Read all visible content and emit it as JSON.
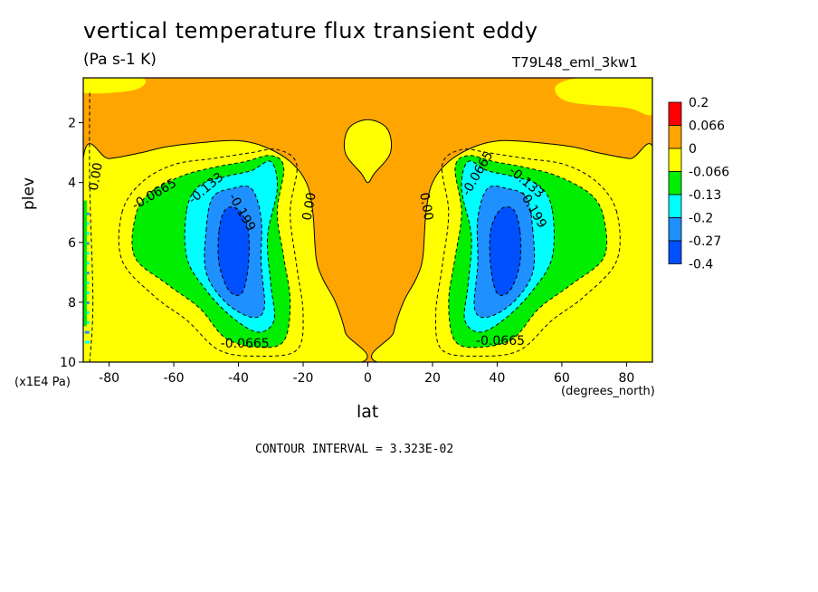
{
  "figure": {
    "title": "vertical temperature flux transient eddy",
    "units": "(Pa s-1 K)",
    "run_id": "T79L48_eml_3kw1",
    "contour_interval": "CONTOUR INTERVAL = 3.323E-02"
  },
  "chart_data": {
    "type": "heatmap",
    "title": "vertical temperature flux transient eddy",
    "xlabel": "lat",
    "xunit": "(degrees_north)",
    "ylabel": "plev",
    "yunit": "(x1E4 Pa)",
    "xlim": [
      -88,
      88
    ],
    "ylim": [
      0.5,
      10
    ],
    "y_inverted": true,
    "xticks": [
      -80,
      -60,
      -40,
      -20,
      0,
      20,
      40,
      60,
      80
    ],
    "yticks": [
      2,
      4,
      6,
      8,
      10
    ],
    "colorbar": {
      "labels": [
        "0.2",
        "0.066",
        "0",
        "-0.066",
        "-0.13",
        "-0.2",
        "-0.27",
        "-0.4"
      ],
      "bounds": [
        0.2,
        0.066,
        0,
        -0.066,
        -0.133,
        -0.2,
        -0.27,
        -0.4
      ],
      "colors": [
        "#ff0000",
        "#ffa500",
        "#ffff00",
        "#00ee00",
        "#00ffff",
        "#1e90ff",
        "#0050ff"
      ]
    },
    "features": [
      {
        "lat": -42,
        "plev": 6.2,
        "min_value": -0.27
      },
      {
        "lat": 43,
        "plev": 6.2,
        "min_value": -0.27
      },
      {
        "lat": -5,
        "plev": 2.9,
        "value": "-0.066 to 0 (yellow patch)"
      }
    ],
    "contour_labels": [
      {
        "text": "-0.0665",
        "lat": -66,
        "plev": 4.4,
        "angle": -30
      },
      {
        "text": "-0.133",
        "lat": -50,
        "plev": 4.2,
        "angle": -40
      },
      {
        "text": "-0.199",
        "lat": -39,
        "plev": 5.0,
        "angle": 60
      },
      {
        "text": "0.00",
        "lat": -18,
        "plev": 4.8,
        "angle": -80
      },
      {
        "text": "0.00",
        "lat": -84,
        "plev": 3.8,
        "angle": -80
      },
      {
        "text": "-0.0665",
        "lat": -38,
        "plev": 9.4,
        "angle": 0
      },
      {
        "text": "0.00",
        "lat": 18,
        "plev": 4.8,
        "angle": 80
      },
      {
        "text": "-0.0665",
        "lat": 34,
        "plev": 3.7,
        "angle": -60
      },
      {
        "text": "-0.133",
        "lat": 49,
        "plev": 4.0,
        "angle": 40
      },
      {
        "text": "-0.199",
        "lat": 51,
        "plev": 4.9,
        "angle": 60
      },
      {
        "text": "-0.0665",
        "lat": 41,
        "plev": 9.3,
        "angle": 0
      }
    ]
  }
}
